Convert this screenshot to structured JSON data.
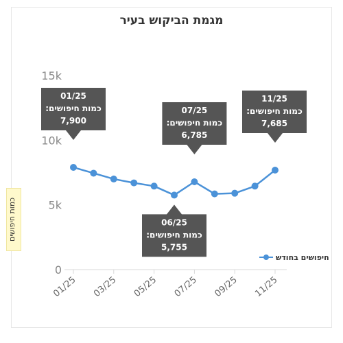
{
  "chart_data": {
    "type": "line",
    "title": "מגמת הביקוש בעיר",
    "ylabel": "כמות חיפושים",
    "xlabel": "",
    "ylim": [
      0,
      15000
    ],
    "yticks": [
      0,
      5000,
      10000,
      15000
    ],
    "ytick_labels": [
      "0",
      "5k",
      "10k",
      "15k"
    ],
    "x": [
      "01/25",
      "02/25",
      "03/25",
      "04/25",
      "05/25",
      "06/25",
      "07/25",
      "08/25",
      "09/25",
      "10/25",
      "11/25"
    ],
    "xtick_labels": [
      "01/25",
      "03/25",
      "05/25",
      "07/25",
      "09/25",
      "11/25"
    ],
    "series": [
      {
        "name": "חיפושים בחודש",
        "color": "#4b92d8",
        "values": [
          7900,
          7450,
          7000,
          6700,
          6450,
          5755,
          6785,
          5850,
          5900,
          6450,
          7685
        ]
      }
    ],
    "annotations": [
      {
        "index": 0,
        "label": "01/25",
        "metric": "כמות חיפושים:",
        "value": "7,900",
        "position": "above"
      },
      {
        "index": 5,
        "label": "06/25",
        "metric": "כמות חיפושים:",
        "value": "5,755",
        "position": "below"
      },
      {
        "index": 6,
        "label": "07/25",
        "metric": "כמות חיפושים:",
        "value": "6,785",
        "position": "above"
      },
      {
        "index": 10,
        "label": "11/25",
        "metric": "כמות חיפושים:",
        "value": "7,685",
        "position": "above"
      }
    ],
    "grid": false,
    "legend_position": "right"
  }
}
